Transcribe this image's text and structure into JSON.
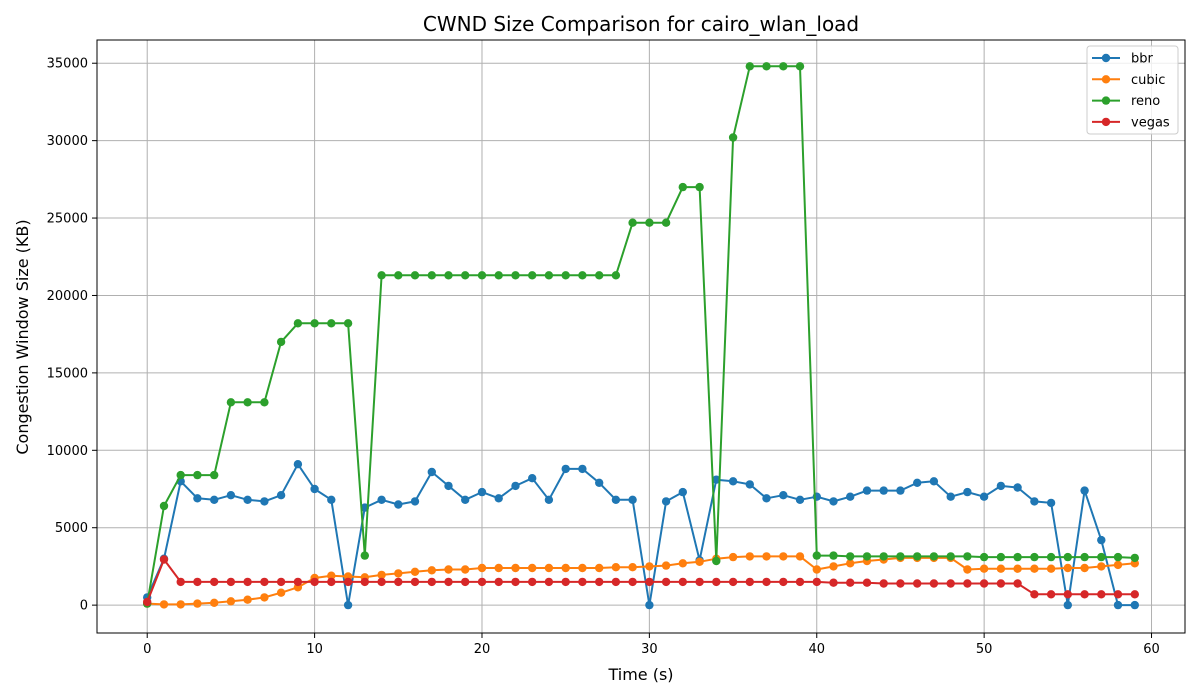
{
  "chart_data": {
    "type": "line",
    "title": "CWND Size Comparison for cairo_wlan_load",
    "xlabel": "Time (s)",
    "ylabel": "Congestion Window Size (KB)",
    "xlim": [
      -3,
      62
    ],
    "ylim": [
      -1800,
      36500
    ],
    "xticks": [
      0,
      10,
      20,
      30,
      40,
      50,
      60
    ],
    "yticks": [
      0,
      5000,
      10000,
      15000,
      20000,
      25000,
      30000,
      35000
    ],
    "grid": true,
    "legend_position": "top-right",
    "x": [
      0,
      1,
      2,
      3,
      4,
      5,
      6,
      7,
      8,
      9,
      10,
      11,
      12,
      13,
      14,
      15,
      16,
      17,
      18,
      19,
      20,
      21,
      22,
      23,
      24,
      25,
      26,
      27,
      28,
      29,
      30,
      31,
      32,
      33,
      34,
      35,
      36,
      37,
      38,
      39,
      40,
      41,
      42,
      43,
      44,
      45,
      46,
      47,
      48,
      49,
      50,
      51,
      52,
      53,
      54,
      55,
      56,
      57,
      58,
      59
    ],
    "series": [
      {
        "name": "bbr",
        "color": "#1f77b4",
        "values": [
          500,
          3000,
          8000,
          6900,
          6800,
          7100,
          6800,
          6700,
          7100,
          9100,
          7500,
          6800,
          0,
          6300,
          6800,
          6500,
          6700,
          8600,
          7700,
          6800,
          7300,
          6900,
          7700,
          8200,
          6800,
          8800,
          8800,
          7900,
          6800,
          6800,
          0,
          6700,
          7300,
          2900,
          8100,
          8000,
          7800,
          6900,
          7100,
          6800,
          7000,
          6700,
          7000,
          7400,
          7400,
          7400,
          7900,
          8000,
          7000,
          7300,
          7000,
          7700,
          7600,
          6700,
          6600,
          0,
          7400,
          4200,
          0,
          0
        ]
      },
      {
        "name": "cubic",
        "color": "#ff7f0e",
        "values": [
          100,
          50,
          50,
          100,
          150,
          250,
          350,
          500,
          800,
          1150,
          1750,
          1900,
          1850,
          1800,
          1950,
          2050,
          2150,
          2250,
          2300,
          2300,
          2400,
          2400,
          2400,
          2400,
          2400,
          2400,
          2400,
          2400,
          2450,
          2450,
          2500,
          2550,
          2700,
          2800,
          3000,
          3100,
          3150,
          3150,
          3150,
          3150,
          2300,
          2500,
          2700,
          2850,
          2950,
          3050,
          3050,
          3050,
          3050,
          2300,
          2350,
          2350,
          2350,
          2350,
          2350,
          2400,
          2400,
          2500,
          2600,
          2700
        ]
      },
      {
        "name": "reno",
        "color": "#2ca02c",
        "values": [
          100,
          6400,
          8400,
          8400,
          8400,
          13100,
          13100,
          13100,
          17000,
          18200,
          18200,
          18200,
          18200,
          3200,
          21300,
          21300,
          21300,
          21300,
          21300,
          21300,
          21300,
          21300,
          21300,
          21300,
          21300,
          21300,
          21300,
          21300,
          21300,
          24700,
          24700,
          24700,
          27000,
          27000,
          2850,
          30200,
          34800,
          34800,
          34800,
          34800,
          3200,
          3200,
          3150,
          3150,
          3150,
          3150,
          3150,
          3150,
          3150,
          3150,
          3100,
          3100,
          3100,
          3100,
          3100,
          3100,
          3100,
          3100,
          3100,
          3050
        ]
      },
      {
        "name": "vegas",
        "color": "#d62728",
        "values": [
          200,
          2950,
          1500,
          1500,
          1500,
          1500,
          1500,
          1500,
          1500,
          1500,
          1500,
          1500,
          1500,
          1500,
          1500,
          1500,
          1500,
          1500,
          1500,
          1500,
          1500,
          1500,
          1500,
          1500,
          1500,
          1500,
          1500,
          1500,
          1500,
          1500,
          1500,
          1500,
          1500,
          1500,
          1500,
          1500,
          1500,
          1500,
          1500,
          1500,
          1500,
          1450,
          1450,
          1450,
          1400,
          1400,
          1400,
          1400,
          1400,
          1400,
          1400,
          1400,
          1400,
          700,
          700,
          700,
          700,
          700,
          700,
          700
        ]
      }
    ]
  }
}
